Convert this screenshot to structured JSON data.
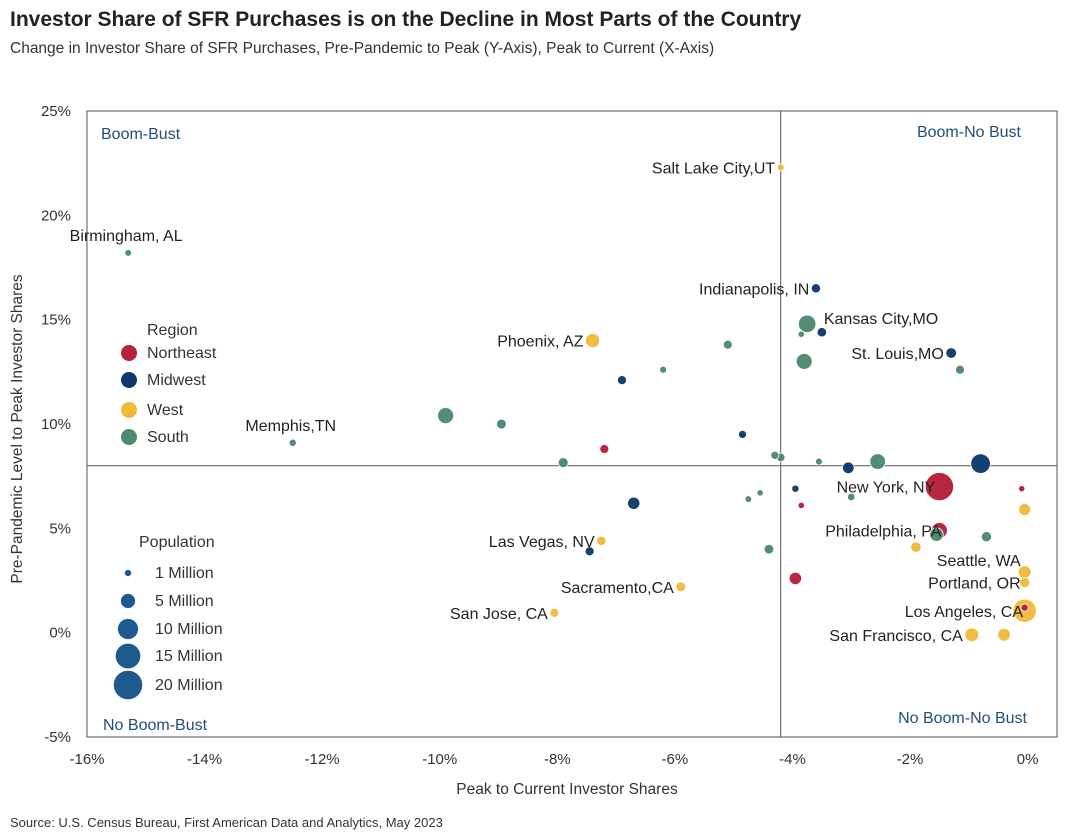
{
  "title": "Investor Share of SFR Purchases is on the Decline in Most Parts of the Country",
  "subtitle": "Change in Investor Share of SFR Purchases, Pre-Pandemic to Peak (Y-Axis), Peak to Current (X-Axis)",
  "source": "Source: U.S. Census Bureau, First American Data and Analytics, May 2023",
  "colors": {
    "Northeast": "#b5213a",
    "Midwest": "#0e3a6b",
    "West": "#f2b93b",
    "South": "#4e8a6f",
    "axis": "#555555",
    "quadrant_label": "#1f4e79",
    "legend_bubble": "#1f5a8e"
  },
  "chart_data": {
    "type": "scatter",
    "title": "Investor Share of SFR Purchases is on the Decline in Most Parts of the Country",
    "xlabel": "Peak to Current Investor Shares",
    "ylabel": "Pre-Pandemic Level to Peak Investor Shares",
    "xlim": [
      -16,
      0.5
    ],
    "ylim": [
      -5,
      25
    ],
    "xticks": [
      -16,
      -14,
      -12,
      -10,
      -8,
      -6,
      -4,
      -2,
      0
    ],
    "xtick_labels": [
      "-16%",
      "-14%",
      "-12%",
      "-10%",
      "-8%",
      "-6%",
      "-4%",
      "-2%",
      "0%"
    ],
    "yticks": [
      -5,
      0,
      5,
      10,
      15,
      20,
      25
    ],
    "ytick_labels": [
      "-5%",
      "0%",
      "5%",
      "10%",
      "15%",
      "20%",
      "25%"
    ],
    "quadrant_divider": {
      "x": -4.2,
      "y": 8
    },
    "quadrant_labels": {
      "top_left": "Boom-Bust",
      "top_right": "Boom-No Bust",
      "bottom_left": "No Boom-Bust",
      "bottom_right": "No Boom-No Bust"
    },
    "legend": {
      "region_title": "Region",
      "regions": [
        "Northeast",
        "Midwest",
        "West",
        "South"
      ],
      "size_title": "Population",
      "sizes": [
        {
          "label": "1 Million",
          "pop": 1
        },
        {
          "label": "5 Million",
          "pop": 5
        },
        {
          "label": "10 Million",
          "pop": 10
        },
        {
          "label": "15 Million",
          "pop": 15
        },
        {
          "label": "20 Million",
          "pop": 20
        }
      ]
    },
    "points": [
      {
        "label": "Salt Lake City,UT",
        "x": -4.2,
        "y": 22.3,
        "region": "West",
        "pop": 1.2,
        "label_pos": "left"
      },
      {
        "label": "Birmingham, AL",
        "x": -15.3,
        "y": 18.2,
        "region": "South",
        "pop": 1.1,
        "label_pos": "above"
      },
      {
        "label": "Indianapolis, IN",
        "x": -3.6,
        "y": 16.5,
        "region": "Midwest",
        "pop": 2.1,
        "label_pos": "left"
      },
      {
        "label": "Kansas City,MO",
        "x": -3.5,
        "y": 14.4,
        "region": "Midwest",
        "pop": 2.2,
        "label_pos": "right-up"
      },
      {
        "label": "",
        "x": -3.75,
        "y": 14.8,
        "region": "South",
        "pop": 7.5
      },
      {
        "label": "",
        "x": -3.85,
        "y": 14.3,
        "region": "South",
        "pop": 1.0
      },
      {
        "label": "Phoenix, AZ",
        "x": -7.4,
        "y": 14.0,
        "region": "West",
        "pop": 4.9,
        "label_pos": "left"
      },
      {
        "label": "St. Louis,MO",
        "x": -1.3,
        "y": 13.4,
        "region": "Midwest",
        "pop": 2.8,
        "label_pos": "left"
      },
      {
        "label": "",
        "x": -5.1,
        "y": 13.8,
        "region": "South",
        "pop": 2.0
      },
      {
        "label": "",
        "x": -3.8,
        "y": 13.0,
        "region": "South",
        "pop": 6.2
      },
      {
        "label": "",
        "x": -1.15,
        "y": 12.6,
        "region": "South",
        "pop": 2.0
      },
      {
        "label": "",
        "x": -6.2,
        "y": 12.6,
        "region": "South",
        "pop": 1.2
      },
      {
        "label": "",
        "x": -6.9,
        "y": 12.1,
        "region": "Midwest",
        "pop": 2.0
      },
      {
        "label": "Memphis,TN",
        "x": -12.5,
        "y": 9.1,
        "region": "South",
        "pop": 1.3,
        "label_pos": "above"
      },
      {
        "label": "",
        "x": -9.9,
        "y": 10.4,
        "region": "South",
        "pop": 6.3
      },
      {
        "label": "",
        "x": -8.95,
        "y": 10.0,
        "region": "South",
        "pop": 2.4
      },
      {
        "label": "",
        "x": -4.85,
        "y": 9.5,
        "region": "Midwest",
        "pop": 1.6
      },
      {
        "label": "",
        "x": -7.2,
        "y": 8.8,
        "region": "Northeast",
        "pop": 2.0
      },
      {
        "label": "",
        "x": -4.3,
        "y": 8.5,
        "region": "South",
        "pop": 1.6
      },
      {
        "label": "",
        "x": -4.2,
        "y": 8.4,
        "region": "South",
        "pop": 1.8
      },
      {
        "label": "",
        "x": -3.55,
        "y": 8.2,
        "region": "South",
        "pop": 1.2
      },
      {
        "label": "",
        "x": -7.9,
        "y": 8.15,
        "region": "South",
        "pop": 2.4
      },
      {
        "label": "",
        "x": -2.55,
        "y": 8.2,
        "region": "South",
        "pop": 6.0
      },
      {
        "label": "",
        "x": -3.05,
        "y": 7.9,
        "region": "Midwest",
        "pop": 3.3
      },
      {
        "label": "",
        "x": -0.8,
        "y": 8.1,
        "region": "Midwest",
        "pop": 9.4
      },
      {
        "label": "New York, NY",
        "x": -1.5,
        "y": 7.0,
        "region": "Northeast",
        "pop": 19.5,
        "label_pos": "left-inline"
      },
      {
        "label": "",
        "x": -3.95,
        "y": 6.9,
        "region": "Midwest",
        "pop": 1.3
      },
      {
        "label": "",
        "x": -0.1,
        "y": 6.9,
        "region": "Northeast",
        "pop": 1.0
      },
      {
        "label": "",
        "x": -4.55,
        "y": 6.7,
        "region": "South",
        "pop": 1.0
      },
      {
        "label": "",
        "x": -3.0,
        "y": 6.5,
        "region": "South",
        "pop": 1.4
      },
      {
        "label": "",
        "x": -4.75,
        "y": 6.4,
        "region": "South",
        "pop": 1.1
      },
      {
        "label": "",
        "x": -6.7,
        "y": 6.2,
        "region": "Midwest",
        "pop": 3.7
      },
      {
        "label": "",
        "x": -3.85,
        "y": 6.1,
        "region": "Northeast",
        "pop": 1.0
      },
      {
        "label": "",
        "x": -0.05,
        "y": 5.9,
        "region": "West",
        "pop": 3.5
      },
      {
        "label": "Philadelphia, PA",
        "x": -1.5,
        "y": 4.9,
        "region": "Northeast",
        "pop": 6.2,
        "label_pos": "left-inline"
      },
      {
        "label": "",
        "x": -1.55,
        "y": 4.7,
        "region": "South",
        "pop": 4.5
      },
      {
        "label": "",
        "x": -0.7,
        "y": 4.6,
        "region": "South",
        "pop": 2.6
      },
      {
        "label": "Las Vegas, NV",
        "x": -7.25,
        "y": 4.4,
        "region": "West",
        "pop": 2.2,
        "label_pos": "left"
      },
      {
        "label": "",
        "x": -7.45,
        "y": 3.9,
        "region": "Midwest",
        "pop": 2.0
      },
      {
        "label": "",
        "x": -1.9,
        "y": 4.1,
        "region": "West",
        "pop": 2.7
      },
      {
        "label": "",
        "x": -4.4,
        "y": 4.0,
        "region": "South",
        "pop": 2.3
      },
      {
        "label": "Seattle, WA",
        "x": -0.05,
        "y": 2.9,
        "region": "West",
        "pop": 4.0,
        "label_pos": "left-up"
      },
      {
        "label": "",
        "x": -3.95,
        "y": 2.6,
        "region": "Northeast",
        "pop": 3.8
      },
      {
        "label": "Portland, OR",
        "x": -0.05,
        "y": 2.4,
        "region": "West",
        "pop": 2.5,
        "label_pos": "left-down"
      },
      {
        "label": "Sacramento,CA",
        "x": -5.9,
        "y": 2.2,
        "region": "West",
        "pop": 2.4,
        "label_pos": "left"
      },
      {
        "label": "Los Angeles, CA",
        "x": -0.05,
        "y": 1.05,
        "region": "West",
        "pop": 13.2,
        "label_pos": "left-inline"
      },
      {
        "label": "",
        "x": -0.05,
        "y": 1.2,
        "region": "Northeast",
        "pop": 1.3
      },
      {
        "label": "San Jose, CA",
        "x": -8.05,
        "y": 0.95,
        "region": "West",
        "pop": 2.0,
        "label_pos": "left"
      },
      {
        "label": "San Francisco, CA",
        "x": -0.95,
        "y": -0.1,
        "region": "West",
        "pop": 4.7,
        "label_pos": "left"
      },
      {
        "label": "",
        "x": -0.4,
        "y": -0.1,
        "region": "West",
        "pop": 4.0
      }
    ]
  }
}
